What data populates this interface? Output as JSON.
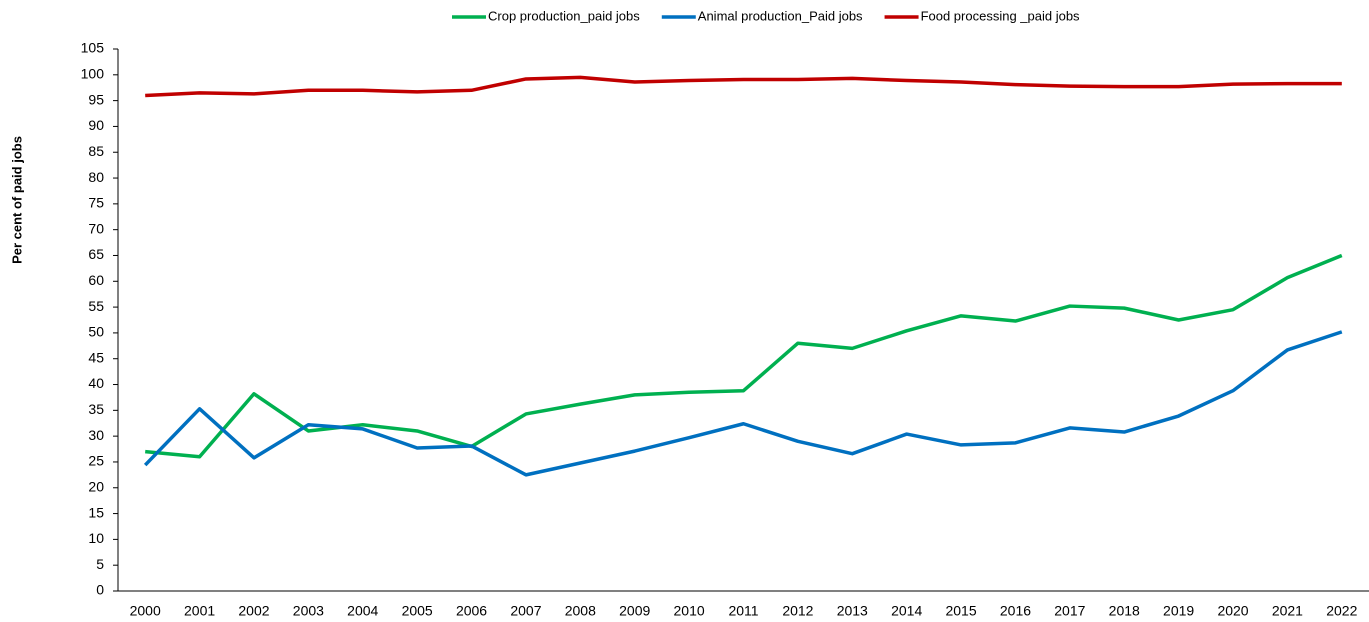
{
  "chart_data": {
    "type": "line",
    "y_label": "Per cent of paid jobs",
    "categories": [
      "2000",
      "2001",
      "2002",
      "2003",
      "2004",
      "2005",
      "2006",
      "2007",
      "2008",
      "2009",
      "2010",
      "2011",
      "2012",
      "2013",
      "2014",
      "2015",
      "2016",
      "2017",
      "2018",
      "2019",
      "2020",
      "2021",
      "2022"
    ],
    "series": [
      {
        "name": "Crop production_paid jobs",
        "color": "#00b050",
        "values": [
          27,
          26,
          38.2,
          31,
          32.2,
          31,
          28,
          34.3,
          36.2,
          38,
          38.5,
          38.8,
          48,
          47,
          50.4,
          53.3,
          52.3,
          55.2,
          54.8,
          52.5,
          54.5,
          60.7,
          65
        ]
      },
      {
        "name": "Animal production_Paid jobs",
        "color": "#0070c0",
        "values": [
          24.4,
          35.3,
          25.8,
          32.2,
          31.4,
          27.7,
          28.1,
          22.5,
          24.8,
          27.1,
          29.7,
          32.4,
          29,
          26.6,
          30.4,
          28.3,
          28.7,
          31.6,
          30.8,
          33.9,
          38.8,
          46.7,
          50.2
        ]
      },
      {
        "name": "Food processing _paid jobs",
        "color": "#c00000",
        "values": [
          96,
          96.5,
          96.3,
          97,
          97,
          96.7,
          97,
          99.2,
          99.5,
          98.6,
          98.9,
          99.1,
          99.1,
          99.3,
          98.9,
          98.6,
          98.1,
          97.8,
          97.7,
          97.7,
          98.2,
          98.3,
          98.3
        ]
      }
    ],
    "ylim": [
      0,
      105
    ],
    "yticks": [
      0,
      5,
      10,
      15,
      20,
      25,
      30,
      35,
      40,
      45,
      50,
      55,
      60,
      65,
      70,
      75,
      80,
      85,
      90,
      95,
      100,
      105
    ],
    "legend": "top"
  }
}
